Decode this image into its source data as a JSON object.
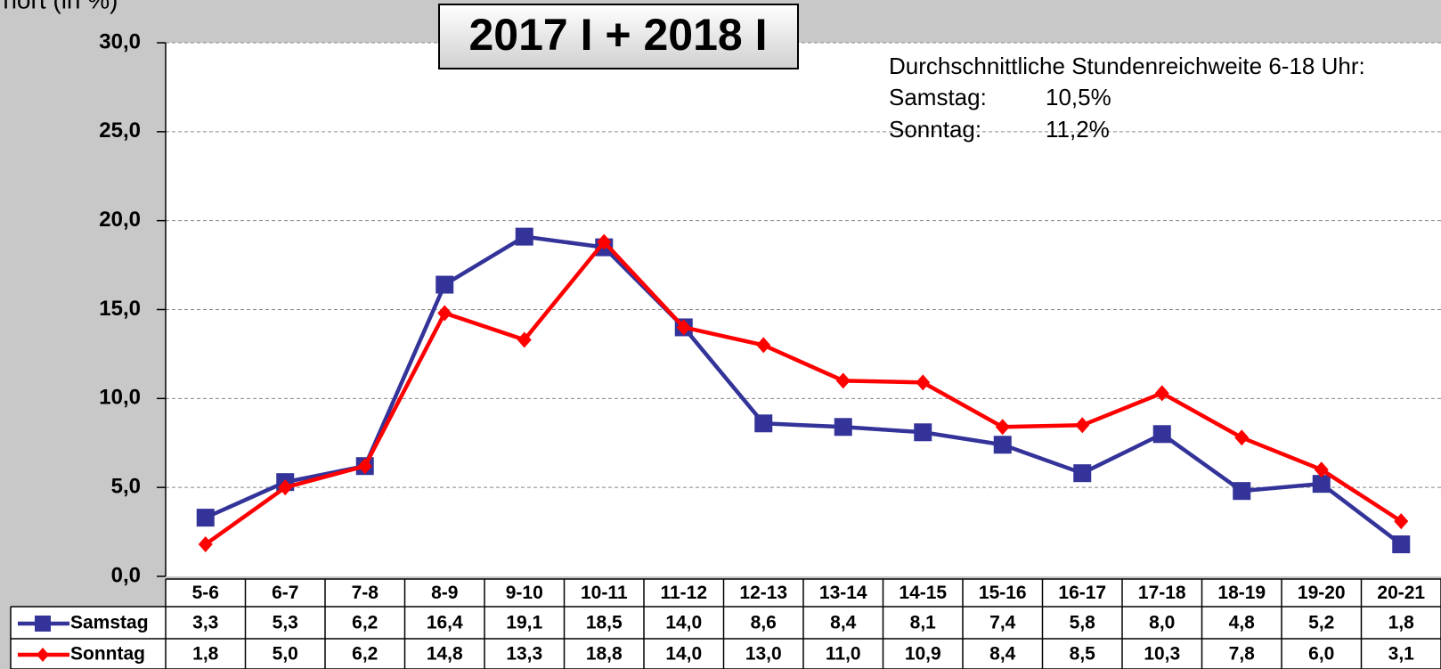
{
  "chart_data": {
    "type": "line",
    "title": "2017 I + 2018 I",
    "y_axis_label": "n hört (in %)",
    "annotation": {
      "heading": "Durchschnittliche Stundenreichweite 6-18 Uhr:",
      "rows": [
        [
          "Samstag:",
          "10,5%"
        ],
        [
          "Sonntag:",
          "11,2%"
        ]
      ]
    },
    "categories": [
      "5-6",
      "6-7",
      "7-8",
      "8-9",
      "9-10",
      "10-11",
      "11-12",
      "12-13",
      "13-14",
      "14-15",
      "15-16",
      "16-17",
      "17-18",
      "18-19",
      "19-20",
      "20-21"
    ],
    "series": [
      {
        "name": "Samstag",
        "color": "#333399",
        "marker": "square",
        "values": [
          3.3,
          5.3,
          6.2,
          16.4,
          19.1,
          18.5,
          14.0,
          8.6,
          8.4,
          8.1,
          7.4,
          5.8,
          8.0,
          4.8,
          5.2,
          1.8
        ],
        "value_labels": [
          "3,3",
          "5,3",
          "6,2",
          "16,4",
          "19,1",
          "18,5",
          "14,0",
          "8,6",
          "8,4",
          "8,1",
          "7,4",
          "5,8",
          "8,0",
          "4,8",
          "5,2",
          "1,8"
        ]
      },
      {
        "name": "Sonntag",
        "color": "#ff0000",
        "marker": "diamond",
        "values": [
          1.8,
          5.0,
          6.2,
          14.8,
          13.3,
          18.8,
          14.0,
          13.0,
          11.0,
          10.9,
          8.4,
          8.5,
          10.3,
          7.8,
          6.0,
          3.1
        ],
        "value_labels": [
          "1,8",
          "5,0",
          "6,2",
          "14,8",
          "13,3",
          "18,8",
          "14,0",
          "13,0",
          "11,0",
          "10,9",
          "8,4",
          "8,5",
          "10,3",
          "7,8",
          "6,0",
          "3,1"
        ]
      }
    ],
    "ylim": [
      0,
      30
    ],
    "yticks": [
      {
        "value": 0,
        "label": "0,0"
      },
      {
        "value": 5,
        "label": "5,0"
      },
      {
        "value": 10,
        "label": "10,0"
      },
      {
        "value": 15,
        "label": "15,0"
      },
      {
        "value": 20,
        "label": "20,0"
      },
      {
        "value": 25,
        "label": "25,0"
      },
      {
        "value": 30,
        "label": "30,0"
      }
    ],
    "grid": true
  }
}
